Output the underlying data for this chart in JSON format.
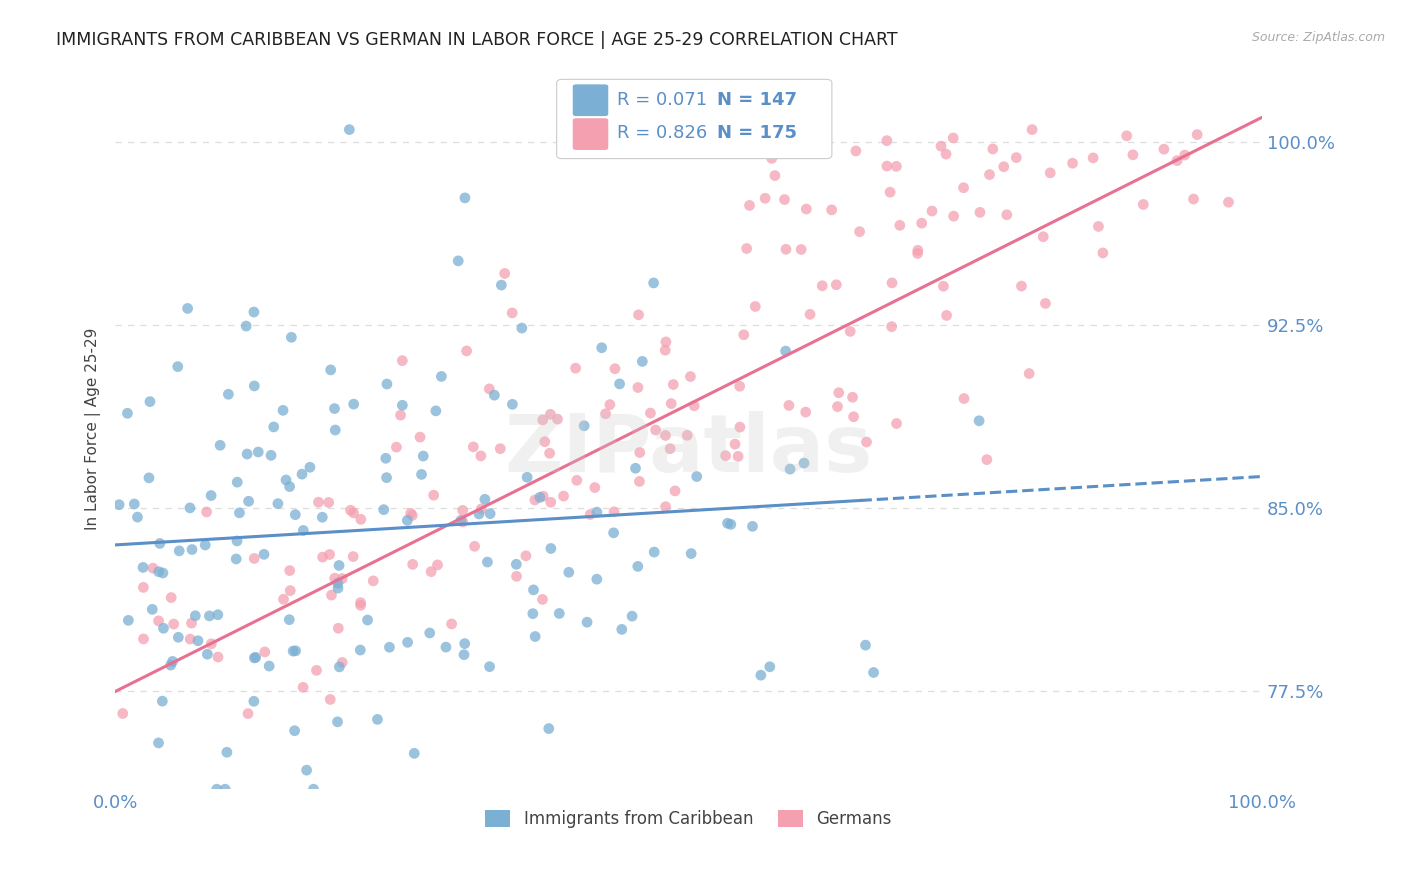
{
  "title": "IMMIGRANTS FROM CARIBBEAN VS GERMAN IN LABOR FORCE | AGE 25-29 CORRELATION CHART",
  "source": "Source: ZipAtlas.com",
  "ylabel": "In Labor Force | Age 25-29",
  "ytick_labels": [
    "77.5%",
    "85.0%",
    "92.5%",
    "100.0%"
  ],
  "ytick_values": [
    0.775,
    0.85,
    0.925,
    1.0
  ],
  "xmin": 0.0,
  "xmax": 1.0,
  "ymin": 0.735,
  "ymax": 1.03,
  "blue_R": "0.071",
  "blue_N": "147",
  "pink_R": "0.826",
  "pink_N": "175",
  "blue_color": "#7bafd4",
  "pink_color": "#f4a0b0",
  "blue_line_color": "#5b8fc7",
  "pink_line_color": "#e87090",
  "title_color": "#222222",
  "label_color": "#5b8fc7",
  "watermark": "ZIPatlas",
  "legend_blue_label": "Immigrants from Caribbean",
  "legend_pink_label": "Germans",
  "grid_color": "#dddddd",
  "background_color": "#ffffff",
  "blue_slope": 0.028,
  "blue_intercept": 0.835,
  "pink_slope": 0.235,
  "pink_intercept": 0.775
}
